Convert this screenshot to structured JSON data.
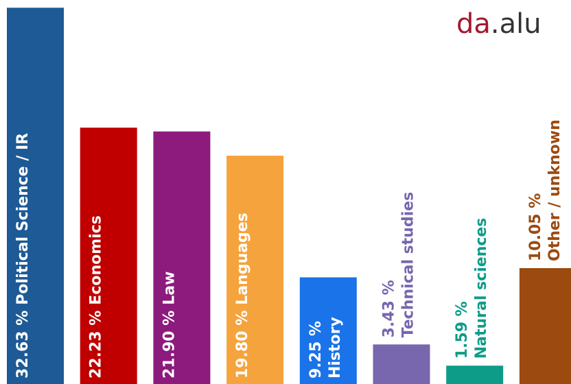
{
  "logo": [
    "da",
    ".alu"
  ],
  "chart_data": {
    "type": "bar",
    "categories": [
      "Political Science / IR",
      "Economics",
      "Law",
      "Languages",
      "History",
      "Technical studies",
      "Natural sciences",
      "Other / unknown"
    ],
    "values": [
      32.63,
      22.23,
      21.9,
      19.8,
      9.25,
      3.43,
      1.59,
      10.05
    ],
    "value_labels": [
      "32.63 %",
      "22.23 %",
      "21.90 %",
      "19.80 %",
      "9.25 %",
      "3.43 %",
      "1.59 %",
      "10.05 %"
    ],
    "colors": [
      "#1d5a96",
      "#c00000",
      "#8c1b7d",
      "#f5a33c",
      "#1a73e8",
      "#7866ae",
      "#0d9c88",
      "#9c4a10"
    ],
    "ylim": [
      0,
      33.3
    ]
  }
}
